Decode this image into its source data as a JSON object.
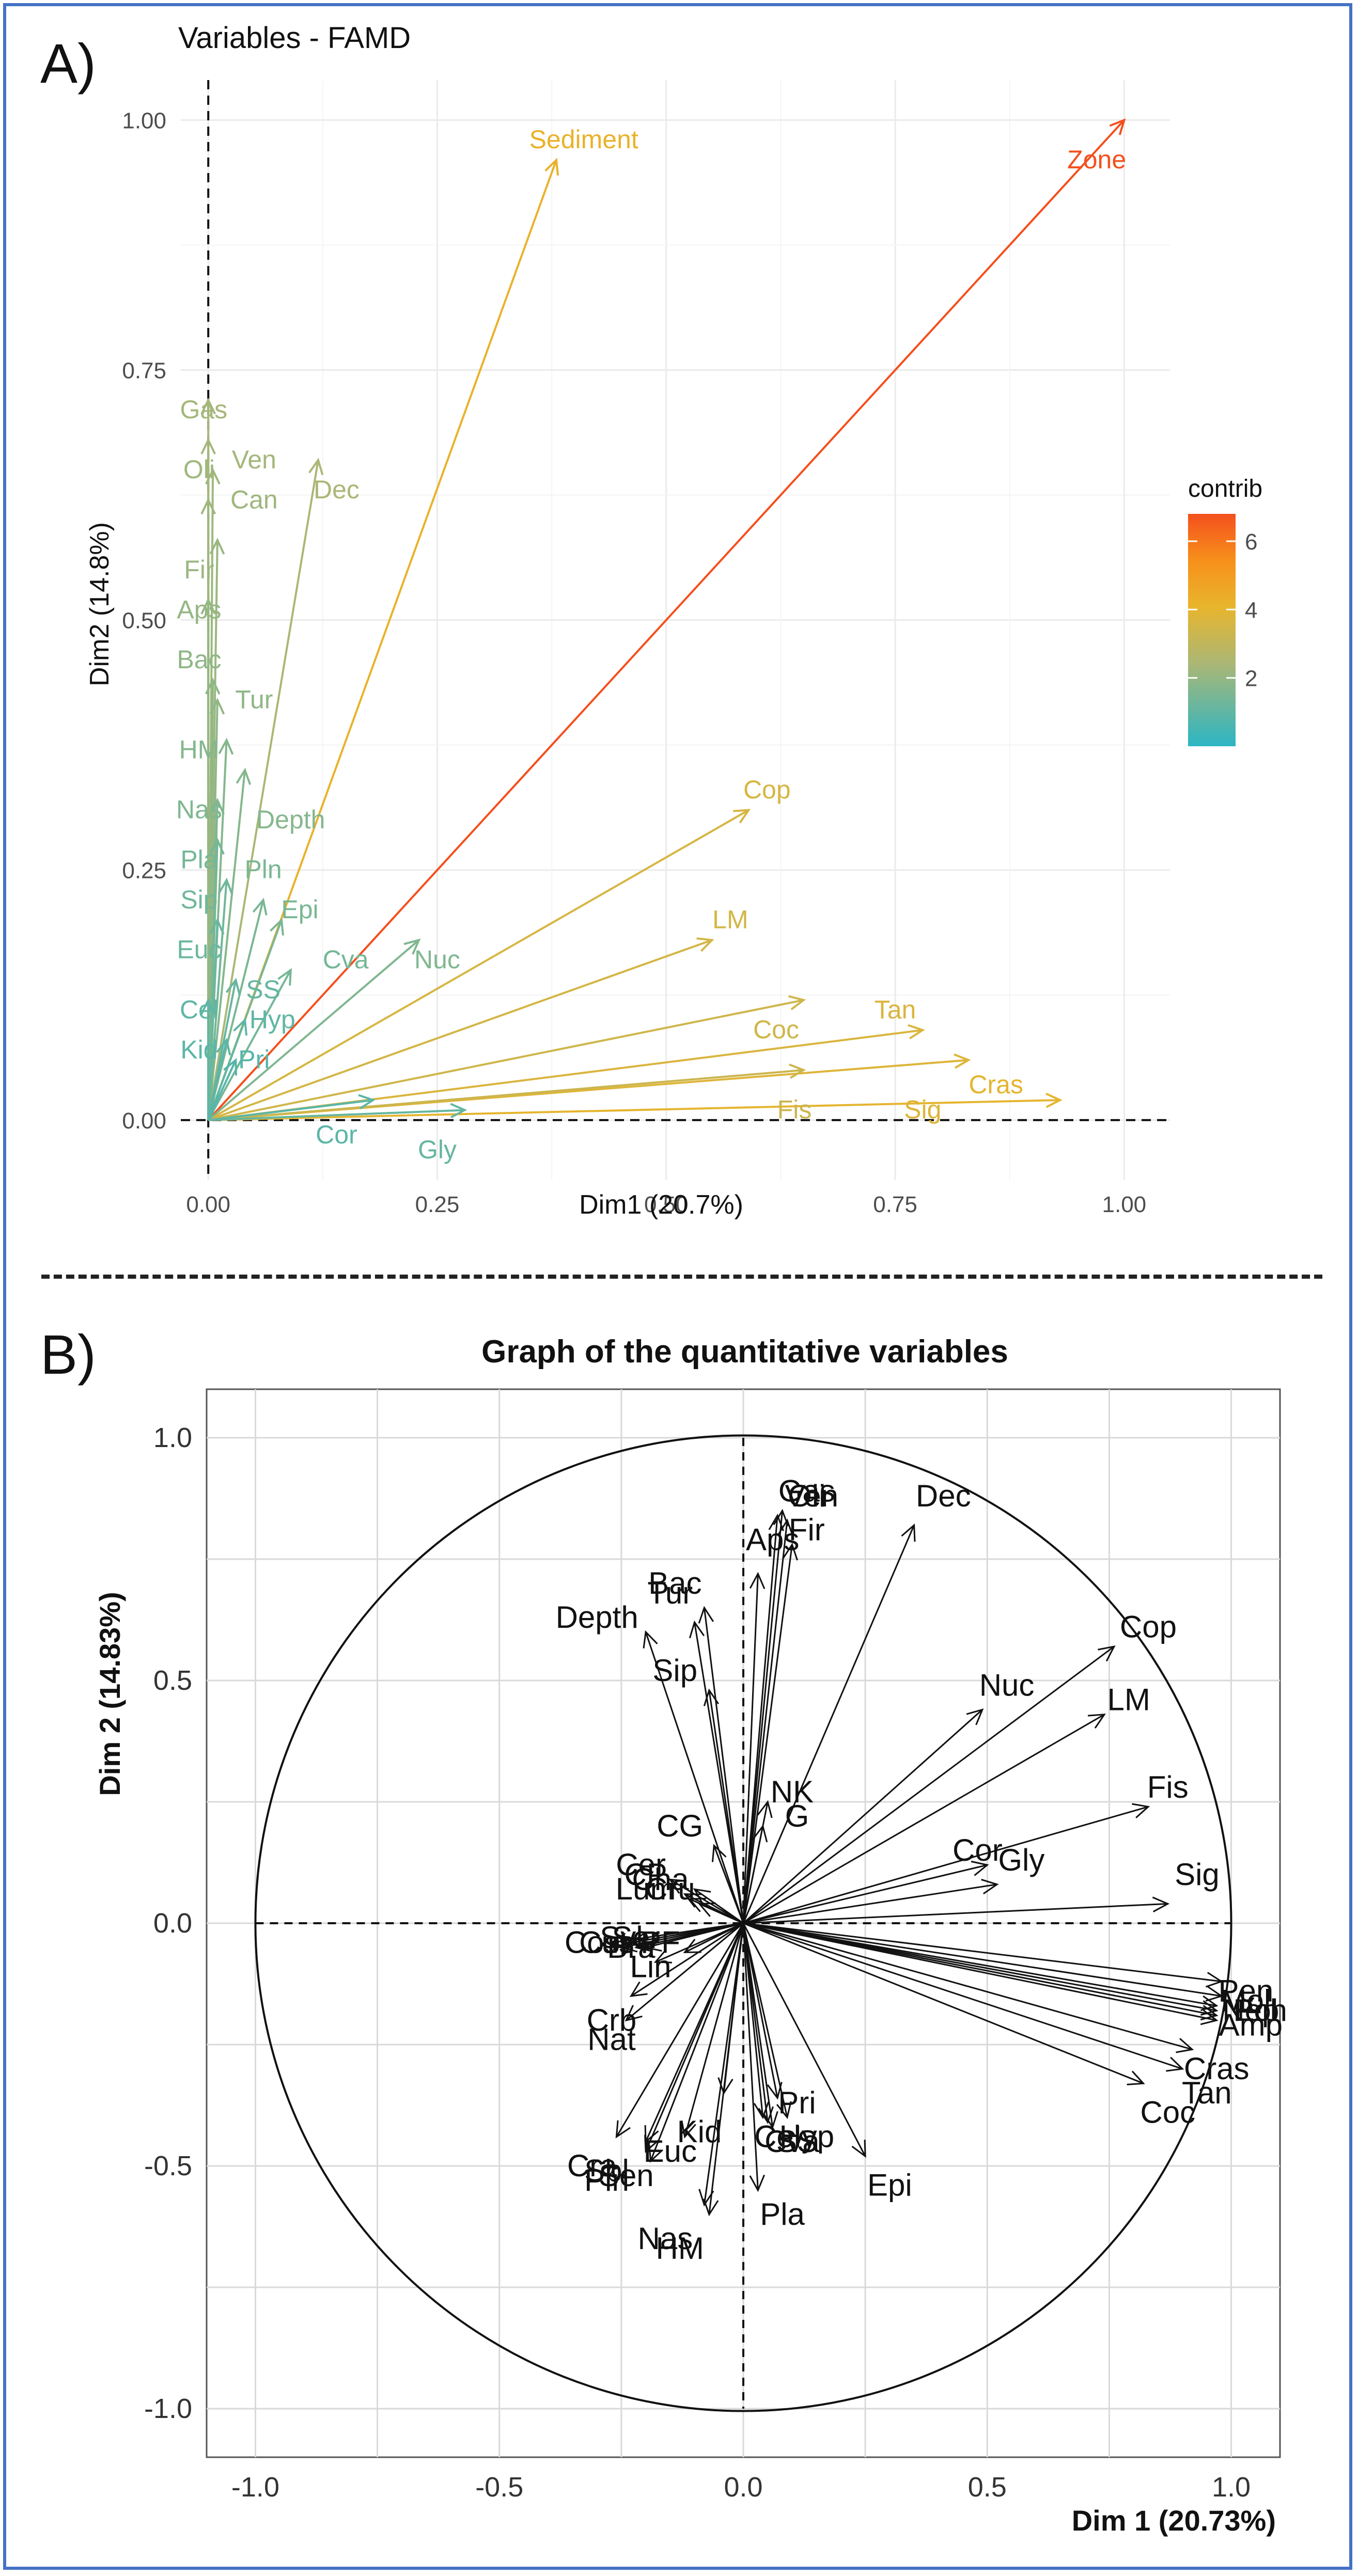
{
  "panels": {
    "a_label": "A)",
    "b_label": "B)"
  },
  "chart_data": [
    {
      "type": "vector",
      "title": "Variables - FAMD",
      "xlabel": "Dim1 (20.7%)",
      "ylabel": "Dim2 (14.8%)",
      "xlim": [
        -0.03,
        1.05
      ],
      "ylim": [
        -0.06,
        1.04
      ],
      "xticks": [
        "0.00",
        "0.25",
        "0.50",
        "0.75",
        "1.00"
      ],
      "yticks": [
        "0.00",
        "0.25",
        "0.50",
        "0.75",
        "1.00"
      ],
      "legend": {
        "title": "contrib",
        "ticks": [
          "2",
          "4",
          "6"
        ],
        "min": 0,
        "max": 6.8,
        "position": "right"
      },
      "vectors": [
        {
          "name": "Zone",
          "x": 1.0,
          "y": 1.0,
          "lx": 0.97,
          "ly": 0.96,
          "contrib": 6.8
        },
        {
          "name": "Sediment",
          "x": 0.38,
          "y": 0.96,
          "lx": 0.41,
          "ly": 0.98,
          "contrib": 4.2
        },
        {
          "name": "Cop",
          "x": 0.59,
          "y": 0.31,
          "lx": 0.61,
          "ly": 0.33,
          "contrib": 3.6
        },
        {
          "name": "LM",
          "x": 0.55,
          "y": 0.18,
          "lx": 0.57,
          "ly": 0.2,
          "contrib": 3.5
        },
        {
          "name": "Tan",
          "x": 0.78,
          "y": 0.09,
          "lx": 0.75,
          "ly": 0.11,
          "contrib": 3.7
        },
        {
          "name": "Coc",
          "x": 0.65,
          "y": 0.12,
          "lx": 0.62,
          "ly": 0.09,
          "contrib": 3.4
        },
        {
          "name": "Cras",
          "x": 0.93,
          "y": 0.02,
          "lx": 0.86,
          "ly": 0.035,
          "contrib": 4.0
        },
        {
          "name": "Sig",
          "x": 0.83,
          "y": 0.06,
          "lx": 0.78,
          "ly": 0.01,
          "contrib": 3.8
        },
        {
          "name": "Fis",
          "x": 0.65,
          "y": 0.05,
          "lx": 0.64,
          "ly": 0.01,
          "contrib": 3.3
        },
        {
          "name": "Dec",
          "x": 0.12,
          "y": 0.66,
          "lx": 0.14,
          "ly": 0.63,
          "contrib": 2.4
        },
        {
          "name": "Ven",
          "x": 0.0,
          "y": 0.68,
          "lx": 0.05,
          "ly": 0.66,
          "contrib": 2.3
        },
        {
          "name": "Gas",
          "x": 0.0,
          "y": 0.72,
          "lx": -0.005,
          "ly": 0.71,
          "contrib": 2.3
        },
        {
          "name": "Oli",
          "x": 0.005,
          "y": 0.65,
          "lx": -0.01,
          "ly": 0.65,
          "contrib": 2.2
        },
        {
          "name": "Can",
          "x": 0.0,
          "y": 0.62,
          "lx": 0.05,
          "ly": 0.62,
          "contrib": 2.2
        },
        {
          "name": "Fir",
          "x": 0.01,
          "y": 0.58,
          "lx": -0.01,
          "ly": 0.55,
          "contrib": 2.1
        },
        {
          "name": "Aps",
          "x": 0.0,
          "y": 0.52,
          "lx": -0.01,
          "ly": 0.51,
          "contrib": 2.0
        },
        {
          "name": "Bac",
          "x": 0.005,
          "y": 0.44,
          "lx": -0.01,
          "ly": 0.46,
          "contrib": 1.9
        },
        {
          "name": "Tur",
          "x": 0.01,
          "y": 0.42,
          "lx": 0.05,
          "ly": 0.42,
          "contrib": 1.9
        },
        {
          "name": "HM",
          "x": 0.02,
          "y": 0.38,
          "lx": -0.01,
          "ly": 0.37,
          "contrib": 1.7
        },
        {
          "name": "Nas",
          "x": 0.01,
          "y": 0.32,
          "lx": -0.01,
          "ly": 0.31,
          "contrib": 1.6
        },
        {
          "name": "Depth",
          "x": 0.04,
          "y": 0.35,
          "lx": 0.09,
          "ly": 0.3,
          "contrib": 1.7
        },
        {
          "name": "Pla",
          "x": 0.01,
          "y": 0.28,
          "lx": -0.01,
          "ly": 0.26,
          "contrib": 1.4
        },
        {
          "name": "Pln",
          "x": 0.06,
          "y": 0.22,
          "lx": 0.06,
          "ly": 0.25,
          "contrib": 1.5
        },
        {
          "name": "Sip",
          "x": 0.02,
          "y": 0.24,
          "lx": -0.01,
          "ly": 0.22,
          "contrib": 1.3
        },
        {
          "name": "Epi",
          "x": 0.08,
          "y": 0.2,
          "lx": 0.1,
          "ly": 0.21,
          "contrib": 1.5
        },
        {
          "name": "Euc",
          "x": 0.01,
          "y": 0.2,
          "lx": -0.01,
          "ly": 0.17,
          "contrib": 1.2
        },
        {
          "name": "Cva",
          "x": 0.09,
          "y": 0.15,
          "lx": 0.15,
          "ly": 0.16,
          "contrib": 1.4
        },
        {
          "name": "Nuc",
          "x": 0.23,
          "y": 0.18,
          "lx": 0.25,
          "ly": 0.16,
          "contrib": 1.6
        },
        {
          "name": "SS",
          "x": 0.03,
          "y": 0.14,
          "lx": 0.06,
          "ly": 0.13,
          "contrib": 1.1
        },
        {
          "name": "Cel",
          "x": 0.0,
          "y": 0.12,
          "lx": -0.01,
          "ly": 0.11,
          "contrib": 1.0
        },
        {
          "name": "Hyp",
          "x": 0.04,
          "y": 0.1,
          "lx": 0.07,
          "ly": 0.1,
          "contrib": 1.0
        },
        {
          "name": "Kid",
          "x": 0.02,
          "y": 0.08,
          "lx": -0.01,
          "ly": 0.07,
          "contrib": 0.9
        },
        {
          "name": "Pri",
          "x": 0.03,
          "y": 0.06,
          "lx": 0.05,
          "ly": 0.06,
          "contrib": 0.8
        },
        {
          "name": "Cor",
          "x": 0.18,
          "y": 0.02,
          "lx": 0.14,
          "ly": -0.015,
          "contrib": 0.9
        },
        {
          "name": "Gly",
          "x": 0.28,
          "y": 0.01,
          "lx": 0.25,
          "ly": -0.03,
          "contrib": 1.1
        }
      ]
    },
    {
      "type": "correlation_circle",
      "title": "Graph of the quantitative variables",
      "xlabel": "Dim 1 (20.73%)",
      "ylabel": "Dim 2 (14.83%)",
      "xlim": [
        -1.1,
        1.1
      ],
      "ylim": [
        -1.1,
        1.1
      ],
      "xticks": [
        "-1.0",
        "-0.5",
        "0.0",
        "0.5",
        "1.0"
      ],
      "yticks": [
        "-1.0",
        "-0.5",
        "0.0",
        "0.5",
        "1.0"
      ],
      "vectors": [
        {
          "name": "Dec",
          "x": 0.35,
          "y": 0.82,
          "lx": 0.41,
          "ly": 0.88
        },
        {
          "name": "Gas",
          "x": 0.08,
          "y": 0.85,
          "lx": 0.13,
          "ly": 0.89
        },
        {
          "name": "Oli",
          "x": 0.07,
          "y": 0.84,
          "lx": 0.13,
          "ly": 0.88
        },
        {
          "name": "Ven",
          "x": 0.09,
          "y": 0.83,
          "lx": 0.14,
          "ly": 0.88
        },
        {
          "name": "Fir",
          "x": 0.1,
          "y": 0.78,
          "lx": 0.13,
          "ly": 0.81
        },
        {
          "name": "Aps",
          "x": 0.03,
          "y": 0.72,
          "lx": 0.06,
          "ly": 0.79
        },
        {
          "name": "Bac",
          "x": -0.08,
          "y": 0.65,
          "lx": -0.14,
          "ly": 0.7
        },
        {
          "name": "Tur",
          "x": -0.1,
          "y": 0.62,
          "lx": -0.15,
          "ly": 0.68
        },
        {
          "name": "Depth",
          "x": -0.2,
          "y": 0.6,
          "lx": -0.3,
          "ly": 0.63
        },
        {
          "name": "Sip",
          "x": -0.07,
          "y": 0.48,
          "lx": -0.14,
          "ly": 0.52
        },
        {
          "name": "Cop",
          "x": 0.76,
          "y": 0.57,
          "lx": 0.83,
          "ly": 0.61
        },
        {
          "name": "Nuc",
          "x": 0.49,
          "y": 0.44,
          "lx": 0.54,
          "ly": 0.49
        },
        {
          "name": "LM",
          "x": 0.74,
          "y": 0.43,
          "lx": 0.79,
          "ly": 0.46
        },
        {
          "name": "Fis",
          "x": 0.83,
          "y": 0.24,
          "lx": 0.87,
          "ly": 0.28
        },
        {
          "name": "NK",
          "x": 0.05,
          "y": 0.25,
          "lx": 0.1,
          "ly": 0.27
        },
        {
          "name": "G",
          "x": 0.04,
          "y": 0.2,
          "lx": 0.11,
          "ly": 0.22
        },
        {
          "name": "Cor",
          "x": 0.5,
          "y": 0.12,
          "lx": 0.48,
          "ly": 0.15
        },
        {
          "name": "Gly",
          "x": 0.52,
          "y": 0.08,
          "lx": 0.57,
          "ly": 0.13
        },
        {
          "name": "Sig",
          "x": 0.87,
          "y": 0.04,
          "lx": 0.93,
          "ly": 0.1
        },
        {
          "name": "CG",
          "x": -0.06,
          "y": 0.16,
          "lx": -0.13,
          "ly": 0.2
        },
        {
          "name": "Cer",
          "x": -0.15,
          "y": 0.09,
          "lx": -0.21,
          "ly": 0.12
        },
        {
          "name": "Cha",
          "x": -0.1,
          "y": 0.07,
          "lx": -0.17,
          "ly": 0.09
        },
        {
          "name": "CP",
          "x": -0.12,
          "y": 0.06,
          "lx": -0.2,
          "ly": 0.1
        },
        {
          "name": "Lum",
          "x": -0.09,
          "y": 0.04,
          "lx": -0.2,
          "ly": 0.07
        },
        {
          "name": "Cru",
          "x": -0.11,
          "y": 0.05,
          "lx": -0.15,
          "ly": 0.07
        },
        {
          "name": "Pen",
          "x": 0.98,
          "y": -0.12,
          "lx": 1.03,
          "ly": -0.14
        },
        {
          "name": "Mol",
          "x": 0.98,
          "y": -0.15,
          "lx": 1.03,
          "ly": -0.16
        },
        {
          "name": "Nep",
          "x": 0.97,
          "y": -0.17,
          "lx": 1.04,
          "ly": -0.18
        },
        {
          "name": "Pol",
          "x": 0.97,
          "y": -0.18,
          "lx": 1.05,
          "ly": -0.18
        },
        {
          "name": "Ech",
          "x": 0.97,
          "y": -0.19,
          "lx": 1.06,
          "ly": -0.18
        },
        {
          "name": "Amp",
          "x": 0.97,
          "y": -0.2,
          "lx": 1.04,
          "ly": -0.21
        },
        {
          "name": "Cras",
          "x": 0.92,
          "y": -0.26,
          "lx": 0.97,
          "ly": -0.3
        },
        {
          "name": "Tan",
          "x": 0.9,
          "y": -0.3,
          "lx": 0.95,
          "ly": -0.35
        },
        {
          "name": "Coc",
          "x": 0.82,
          "y": -0.33,
          "lx": 0.87,
          "ly": -0.39
        },
        {
          "name": "Cos",
          "x": -0.27,
          "y": -0.04,
          "lx": -0.31,
          "ly": -0.04
        },
        {
          "name": "Cus",
          "x": -0.25,
          "y": -0.05,
          "lx": -0.28,
          "ly": -0.04
        },
        {
          "name": "Syl",
          "x": -0.23,
          "y": -0.04,
          "lx": -0.25,
          "ly": -0.03
        },
        {
          "name": "Ser",
          "x": -0.22,
          "y": -0.05,
          "lx": -0.22,
          "ly": -0.03
        },
        {
          "name": "Bra",
          "x": -0.2,
          "y": -0.05,
          "lx": -0.23,
          "ly": -0.05
        },
        {
          "name": "PF",
          "x": -0.12,
          "y": -0.06,
          "lx": -0.17,
          "ly": -0.04
        },
        {
          "name": "Lin",
          "x": -0.18,
          "y": -0.08,
          "lx": -0.19,
          "ly": -0.09
        },
        {
          "name": "Crb",
          "x": -0.23,
          "y": -0.15,
          "lx": -0.27,
          "ly": -0.2
        },
        {
          "name": "Nat",
          "x": -0.24,
          "y": -0.2,
          "lx": -0.27,
          "ly": -0.24
        },
        {
          "name": "Kid",
          "x": -0.04,
          "y": -0.35,
          "lx": -0.09,
          "ly": -0.43
        },
        {
          "name": "Euc",
          "x": -0.12,
          "y": -0.44,
          "lx": -0.15,
          "ly": -0.47
        },
        {
          "name": "Cra",
          "x": -0.26,
          "y": -0.44,
          "lx": -0.31,
          "ly": -0.5
        },
        {
          "name": "Sbl",
          "x": -0.2,
          "y": -0.45,
          "lx": -0.28,
          "ly": -0.51
        },
        {
          "name": "Sen",
          "x": -0.2,
          "y": -0.47,
          "lx": -0.24,
          "ly": -0.52
        },
        {
          "name": "Pin",
          "x": -0.19,
          "y": -0.49,
          "lx": -0.28,
          "ly": -0.53
        },
        {
          "name": "Cel",
          "x": 0.04,
          "y": -0.4,
          "lx": 0.07,
          "ly": -0.44
        },
        {
          "name": "Cva",
          "x": 0.05,
          "y": -0.41,
          "lx": 0.1,
          "ly": -0.45
        },
        {
          "name": "Pri",
          "x": 0.07,
          "y": -0.36,
          "lx": 0.11,
          "ly": -0.37
        },
        {
          "name": "Hyp",
          "x": 0.09,
          "y": -0.4,
          "lx": 0.13,
          "ly": -0.44
        },
        {
          "name": "SS",
          "x": 0.06,
          "y": -0.42,
          "lx": 0.11,
          "ly": -0.45
        },
        {
          "name": "Epi",
          "x": 0.25,
          "y": -0.48,
          "lx": 0.3,
          "ly": -0.54
        },
        {
          "name": "Pla",
          "x": 0.03,
          "y": -0.55,
          "lx": 0.08,
          "ly": -0.6
        },
        {
          "name": "Nas",
          "x": -0.08,
          "y": -0.58,
          "lx": -0.16,
          "ly": -0.65
        },
        {
          "name": "HM",
          "x": -0.07,
          "y": -0.6,
          "lx": -0.13,
          "ly": -0.67
        }
      ]
    }
  ]
}
